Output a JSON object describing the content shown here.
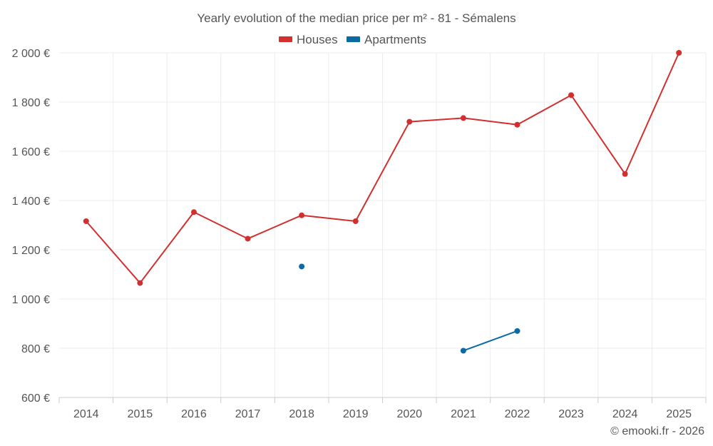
{
  "chart_data": {
    "type": "line",
    "title": "Yearly evolution of the median price per m² - 81 - Sémalens",
    "categories": [
      "2014",
      "2015",
      "2016",
      "2017",
      "2018",
      "2019",
      "2020",
      "2021",
      "2022",
      "2023",
      "2024",
      "2025"
    ],
    "series": [
      {
        "name": "Houses",
        "color": "#d32f2f",
        "values": [
          1316,
          1065,
          1353,
          1245,
          1340,
          1316,
          1720,
          1735,
          1708,
          1828,
          1508,
          2000
        ]
      },
      {
        "name": "Apartments",
        "color": "#0a6aa1",
        "values": [
          null,
          null,
          null,
          null,
          1132,
          null,
          null,
          790,
          870,
          null,
          null,
          null
        ]
      }
    ],
    "ylim": [
      600,
      2000
    ],
    "yticks": [
      600,
      800,
      1000,
      1200,
      1400,
      1600,
      1800,
      2000
    ],
    "ytick_labels": [
      "600 €",
      "800 €",
      "1 000 €",
      "1 200 €",
      "1 400 €",
      "1 600 €",
      "1 800 €",
      "2 000 €"
    ],
    "xlabel": "",
    "ylabel": "",
    "grid": true,
    "legend_position": "top-center",
    "credit": "© emooki.fr - 2026"
  }
}
